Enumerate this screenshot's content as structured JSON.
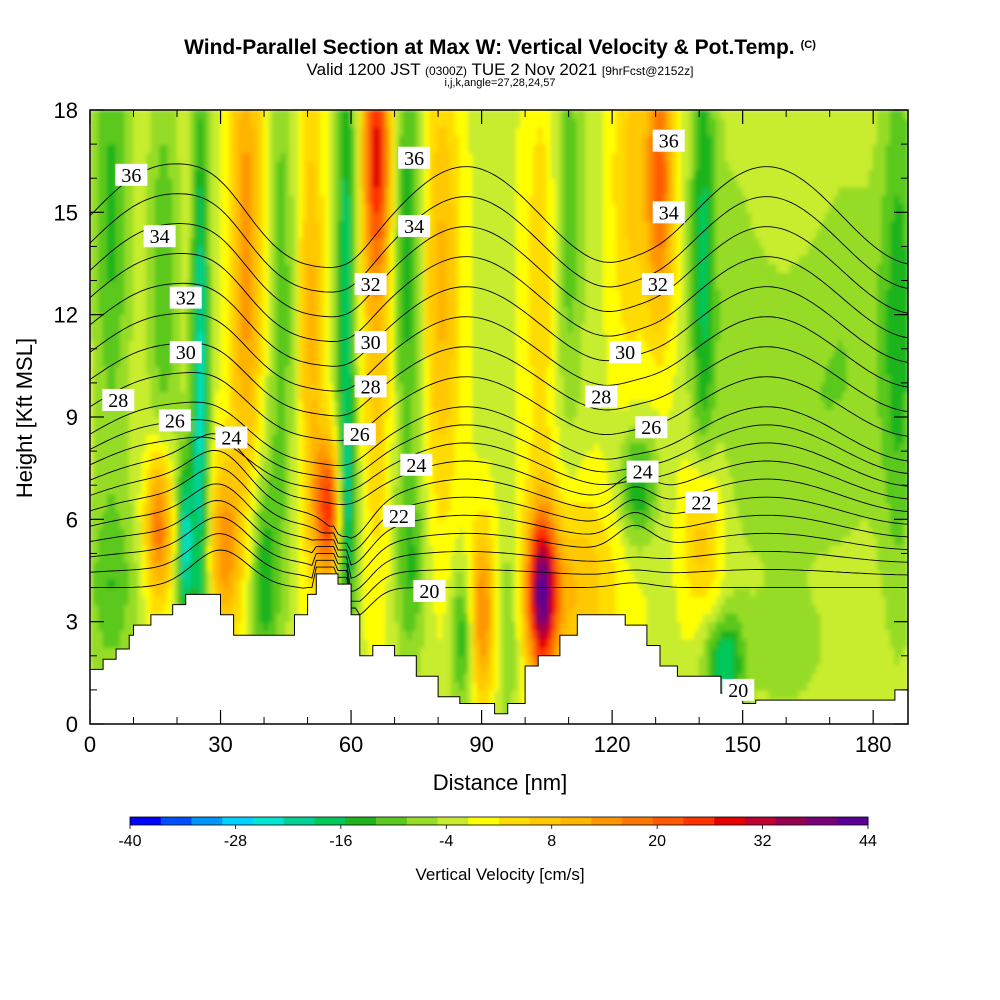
{
  "title": {
    "main": "Wind-Parallel Section at Max W: Vertical Velocity & Pot.Temp.",
    "copyright": "(C)",
    "valid_prefix": "Valid 1200 JST",
    "valid_utc": "(0300Z)",
    "valid_date": "TUE 2 Nov 2021",
    "forecast": "[9hrFcst@2152z]",
    "indices": "i,j,k,angle=27,28,24,57"
  },
  "chart_data": {
    "type": "heatmap",
    "xlabel": "Distance [nm]",
    "ylabel": "Height [Kft MSL]",
    "xlim": [
      0,
      188
    ],
    "ylim": [
      0,
      18
    ],
    "xticks": [
      "0",
      "30",
      "60",
      "90",
      "120",
      "150",
      "180"
    ],
    "yticks": [
      "0",
      "3",
      "6",
      "9",
      "12",
      "15",
      "18"
    ],
    "colorbar": {
      "label": "Vertical Velocity [cm/s]",
      "min": -40,
      "max": 44,
      "step": 4,
      "tick_labels": [
        "-40",
        "-28",
        "-16",
        "-4",
        "8",
        "20",
        "32",
        "44"
      ],
      "colors": [
        "#0000ff",
        "#0050ff",
        "#0096ff",
        "#00d2ff",
        "#00e6d2",
        "#00d296",
        "#00c85a",
        "#1eb41e",
        "#5ac81e",
        "#96dc28",
        "#c8ec2d",
        "#ffff00",
        "#ffdc00",
        "#ffc800",
        "#ffb400",
        "#ff9600",
        "#ff7800",
        "#ff5a00",
        "#ff3200",
        "#e60000",
        "#be0032",
        "#960050",
        "#780078",
        "#5a0096"
      ]
    },
    "terrain": [
      [
        0,
        1.6
      ],
      [
        3,
        1.6
      ],
      [
        3,
        1.9
      ],
      [
        6,
        1.9
      ],
      [
        6,
        2.2
      ],
      [
        9,
        2.2
      ],
      [
        9,
        2.6
      ],
      [
        10,
        2.6
      ],
      [
        10,
        2.9
      ],
      [
        14,
        2.9
      ],
      [
        14,
        3.2
      ],
      [
        19,
        3.2
      ],
      [
        19,
        3.5
      ],
      [
        22,
        3.5
      ],
      [
        22,
        3.8
      ],
      [
        30,
        3.8
      ],
      [
        30,
        3.2
      ],
      [
        33,
        3.2
      ],
      [
        33,
        2.6
      ],
      [
        47,
        2.6
      ],
      [
        47,
        3.2
      ],
      [
        50,
        3.2
      ],
      [
        50,
        3.8
      ],
      [
        52,
        3.8
      ],
      [
        52,
        4.4
      ],
      [
        57,
        4.4
      ],
      [
        57,
        4.1
      ],
      [
        60,
        4.1
      ],
      [
        60,
        3.2
      ],
      [
        62,
        3.2
      ],
      [
        62,
        2.0
      ],
      [
        65,
        2.0
      ],
      [
        65,
        2.3
      ],
      [
        70,
        2.3
      ],
      [
        70,
        2.0
      ],
      [
        75,
        2.0
      ],
      [
        75,
        1.4
      ],
      [
        80,
        1.4
      ],
      [
        80,
        0.8
      ],
      [
        85,
        0.8
      ],
      [
        85,
        0.6
      ],
      [
        93,
        0.6
      ],
      [
        93,
        0.3
      ],
      [
        96,
        0.3
      ],
      [
        96,
        0.6
      ],
      [
        100,
        0.6
      ],
      [
        100,
        1.7
      ],
      [
        103,
        1.7
      ],
      [
        103,
        2.0
      ],
      [
        108,
        2.0
      ],
      [
        108,
        2.6
      ],
      [
        112,
        2.6
      ],
      [
        112,
        3.2
      ],
      [
        123,
        3.2
      ],
      [
        123,
        2.9
      ],
      [
        128,
        2.9
      ],
      [
        128,
        2.3
      ],
      [
        131,
        2.3
      ],
      [
        131,
        1.7
      ],
      [
        135,
        1.7
      ],
      [
        135,
        1.4
      ],
      [
        145,
        1.4
      ],
      [
        145,
        0.9
      ],
      [
        150,
        0.9
      ],
      [
        150,
        0.6
      ],
      [
        153,
        0.6
      ],
      [
        153,
        0.7
      ],
      [
        185,
        0.7
      ],
      [
        185,
        1.0
      ],
      [
        188,
        1.0
      ]
    ],
    "updrafts": [
      {
        "x": 16,
        "z": 5.8,
        "sx": 2.2,
        "sz": 1.6,
        "w": 26
      },
      {
        "x": 22,
        "z": 5.3,
        "sx": 1.3,
        "sz": 1.8,
        "w": -24
      },
      {
        "x": 25.5,
        "z": 9.5,
        "sx": 1.4,
        "sz": 6.5,
        "w": -24
      },
      {
        "x": 31,
        "z": 5.2,
        "sx": 2.6,
        "sz": 1.8,
        "w": 20
      },
      {
        "x": 36,
        "z": 14,
        "sx": 2.6,
        "sz": 5,
        "w": 20
      },
      {
        "x": 40,
        "z": 4.2,
        "sx": 2.2,
        "sz": 2.2,
        "w": -14
      },
      {
        "x": 44,
        "z": 12,
        "sx": 2,
        "sz": 6,
        "w": -10
      },
      {
        "x": 17,
        "z": 13,
        "sx": 2.5,
        "sz": 5,
        "w": -10
      },
      {
        "x": 5,
        "z": 15,
        "sx": 3,
        "sz": 5,
        "w": -12
      },
      {
        "x": 55,
        "z": 6.3,
        "sx": 2.3,
        "sz": 1.5,
        "w": 32
      },
      {
        "x": 51,
        "z": 12,
        "sx": 2,
        "sz": 5,
        "w": 14
      },
      {
        "x": 59,
        "z": 6,
        "sx": 1.6,
        "sz": 2.2,
        "w": -16
      },
      {
        "x": 59,
        "z": 13,
        "sx": 1.6,
        "sz": 6,
        "w": -18
      },
      {
        "x": 66,
        "z": 17,
        "sx": 2.2,
        "sz": 2.5,
        "w": 28
      },
      {
        "x": 66,
        "z": 12,
        "sx": 2.5,
        "sz": 5,
        "w": 12
      },
      {
        "x": 73,
        "z": 14,
        "sx": 2.2,
        "sz": 5,
        "w": -14
      },
      {
        "x": 74,
        "z": 4.5,
        "sx": 2.5,
        "sz": 2,
        "w": -10
      },
      {
        "x": 81,
        "z": 13,
        "sx": 3,
        "sz": 5,
        "w": 14
      },
      {
        "x": 86,
        "z": 2.6,
        "sx": 2,
        "sz": 1.5,
        "w": -16
      },
      {
        "x": 90,
        "z": 3.2,
        "sx": 2.3,
        "sz": 1.8,
        "w": 22
      },
      {
        "x": 96,
        "z": 3,
        "sx": 2,
        "sz": 2,
        "w": -10
      },
      {
        "x": 104,
        "z": 3.8,
        "sx": 2.3,
        "sz": 1.6,
        "w": 40
      },
      {
        "x": 104,
        "z": 13,
        "sx": 3,
        "sz": 5,
        "w": 8
      },
      {
        "x": 110,
        "z": 4,
        "sx": 8,
        "sz": 2,
        "w": 14
      },
      {
        "x": 110,
        "z": 15,
        "sx": 2.5,
        "sz": 5,
        "w": -10
      },
      {
        "x": 126,
        "z": 7,
        "sx": 3,
        "sz": 1.2,
        "w": -16
      },
      {
        "x": 131,
        "z": 16,
        "sx": 2.4,
        "sz": 3,
        "w": 26
      },
      {
        "x": 124,
        "z": 16,
        "sx": 3,
        "sz": 4,
        "w": 10
      },
      {
        "x": 141,
        "z": 5.5,
        "sx": 3,
        "sz": 1.8,
        "w": 16
      },
      {
        "x": 141,
        "z": 14,
        "sx": 2,
        "sz": 6,
        "w": -14
      },
      {
        "x": 146,
        "z": 1.8,
        "sx": 3,
        "sz": 1,
        "w": -18
      },
      {
        "x": 147,
        "z": 12,
        "sx": 6,
        "sz": 5,
        "w": -4
      },
      {
        "x": 160,
        "z": 9,
        "sx": 8,
        "sz": 3,
        "w": -6
      },
      {
        "x": 175,
        "z": 11,
        "sx": 7,
        "sz": 4,
        "w": -6
      },
      {
        "x": 186,
        "z": 12,
        "sx": 3,
        "sz": 6,
        "w": -12
      },
      {
        "x": 160,
        "z": 2,
        "sx": 8,
        "sz": 1.5,
        "w": -4
      },
      {
        "x": 5,
        "z": 4,
        "sx": 4,
        "sz": 2,
        "w": -10
      }
    ],
    "isentrope_levels": [
      20,
      21,
      22,
      23,
      24,
      25,
      26,
      27,
      28,
      29,
      30,
      31,
      32,
      33,
      34,
      35,
      36,
      37,
      38
    ],
    "isentrope_labels": [
      {
        "text": "36",
        "x": 9.5,
        "z": 16.1
      },
      {
        "text": "34",
        "x": 16,
        "z": 14.3
      },
      {
        "text": "32",
        "x": 22,
        "z": 12.5
      },
      {
        "text": "30",
        "x": 22,
        "z": 10.9
      },
      {
        "text": "28",
        "x": 6.5,
        "z": 9.5
      },
      {
        "text": "26",
        "x": 19.5,
        "z": 8.9
      },
      {
        "text": "24",
        "x": 32.5,
        "z": 8.4
      },
      {
        "text": "36",
        "x": 74.5,
        "z": 16.6
      },
      {
        "text": "34",
        "x": 74.5,
        "z": 14.6
      },
      {
        "text": "32",
        "x": 64.5,
        "z": 12.9
      },
      {
        "text": "30",
        "x": 64.5,
        "z": 11.2
      },
      {
        "text": "28",
        "x": 64.5,
        "z": 9.9
      },
      {
        "text": "26",
        "x": 62,
        "z": 8.5
      },
      {
        "text": "24",
        "x": 75,
        "z": 7.6
      },
      {
        "text": "22",
        "x": 71,
        "z": 6.1
      },
      {
        "text": "20",
        "x": 78,
        "z": 3.9
      },
      {
        "text": "36",
        "x": 133,
        "z": 17.1
      },
      {
        "text": "34",
        "x": 133,
        "z": 15
      },
      {
        "text": "32",
        "x": 130.5,
        "z": 12.9
      },
      {
        "text": "30",
        "x": 123,
        "z": 10.9
      },
      {
        "text": "28",
        "x": 117.5,
        "z": 9.6
      },
      {
        "text": "26",
        "x": 129,
        "z": 8.7
      },
      {
        "text": "24",
        "x": 127,
        "z": 7.4
      },
      {
        "text": "22",
        "x": 140.5,
        "z": 6.5
      },
      {
        "text": "20",
        "x": 149,
        "z": 1
      }
    ]
  }
}
